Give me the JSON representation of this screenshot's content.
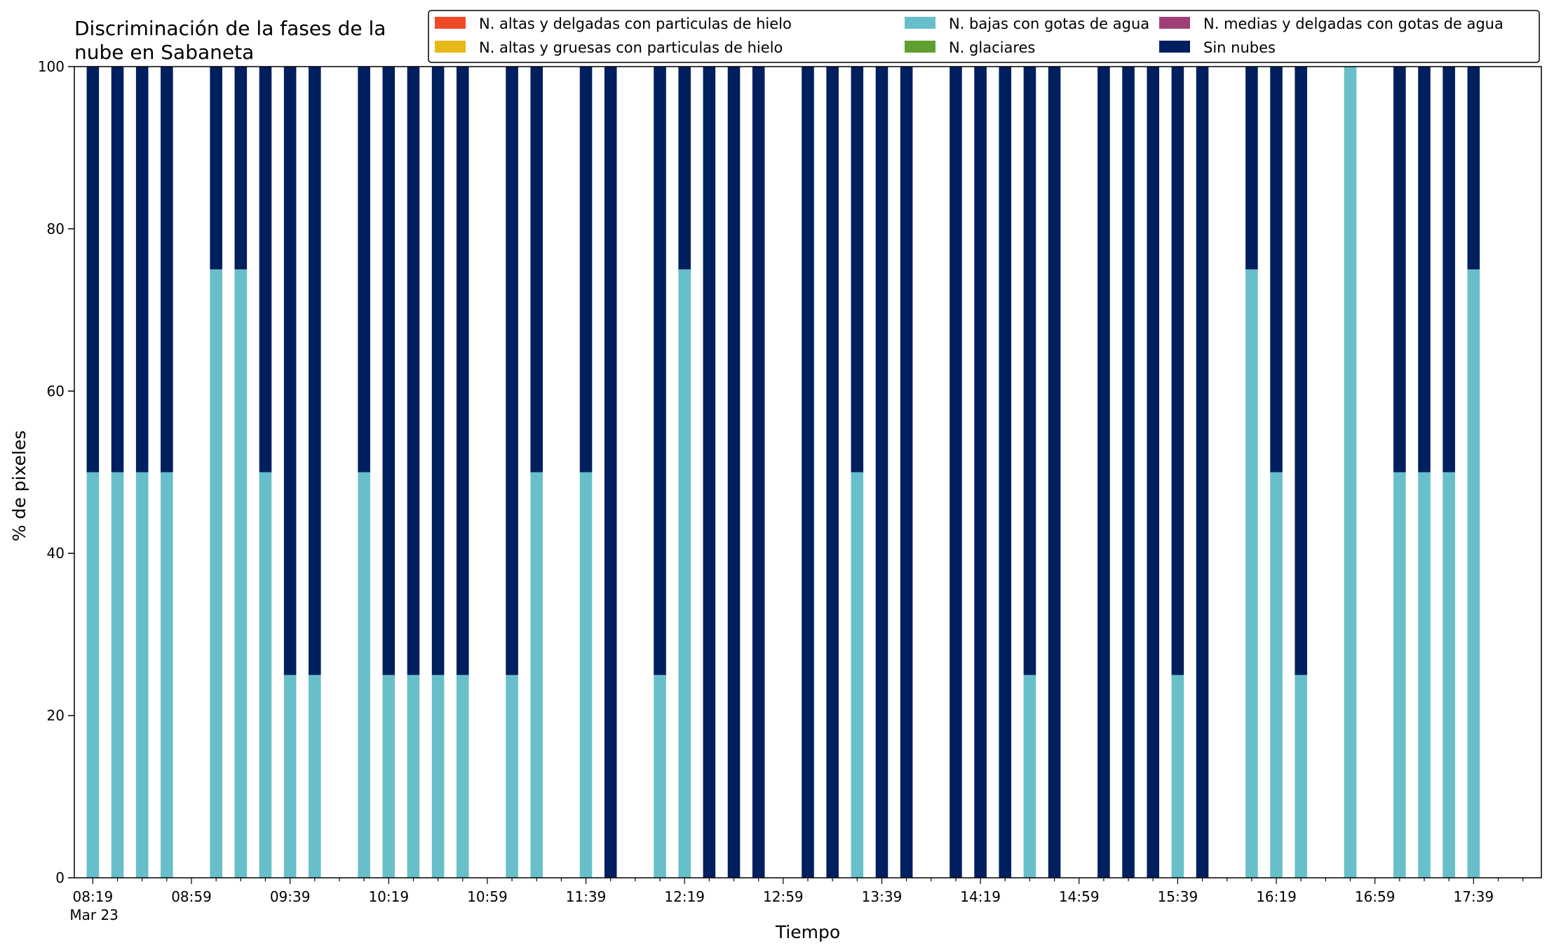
{
  "chart_data": {
    "type": "bar",
    "stacked": true,
    "title_lines": [
      "Discriminación de la fases de la",
      "nube en Sabaneta"
    ],
    "xlabel": "Tiempo",
    "ylabel": "% de pixeles",
    "ylim": [
      0,
      100
    ],
    "y_ticks": [
      "0",
      "20",
      "40",
      "60",
      "80",
      "100"
    ],
    "x_ticks": [
      "08:19",
      "08:59",
      "09:39",
      "10:19",
      "10:59",
      "11:39",
      "12:19",
      "12:59",
      "13:39",
      "14:19",
      "14:59",
      "15:39",
      "16:19",
      "16:59",
      "17:39"
    ],
    "x_tick_sublabel": "Mar 23",
    "grid": false,
    "legend_position": "top-right",
    "x_start": "08:19",
    "x_end": "17:59",
    "x_step_minutes": 10,
    "times": [
      "08:19",
      "08:29",
      "08:39",
      "08:49",
      "08:59",
      "09:09",
      "09:19",
      "09:29",
      "09:39",
      "09:49",
      "09:59",
      "10:09",
      "10:19",
      "10:29",
      "10:39",
      "10:49",
      "10:59",
      "11:09",
      "11:19",
      "11:29",
      "11:39",
      "11:49",
      "11:59",
      "12:09",
      "12:19",
      "12:29",
      "12:39",
      "12:49",
      "12:59",
      "13:09",
      "13:19",
      "13:29",
      "13:39",
      "13:49",
      "13:59",
      "14:09",
      "14:19",
      "14:29",
      "14:39",
      "14:49",
      "14:59",
      "15:09",
      "15:19",
      "15:29",
      "15:39",
      "15:49",
      "15:59",
      "16:09",
      "16:19",
      "16:29",
      "16:39",
      "16:49",
      "16:59",
      "17:09",
      "17:19",
      "17:29",
      "17:39"
    ],
    "series": [
      {
        "name": "N. altas y delgadas con particulas de hielo",
        "color": "#ef4a28",
        "values": [
          0,
          0,
          0,
          0,
          0,
          0,
          0,
          0,
          0,
          0,
          0,
          0,
          0,
          0,
          0,
          0,
          0,
          0,
          0,
          0,
          0,
          0,
          0,
          0,
          0,
          0,
          0,
          0,
          0,
          0,
          0,
          0,
          0,
          0,
          0,
          0,
          0,
          0,
          0,
          0,
          0,
          0,
          0,
          0,
          0,
          0,
          0,
          0,
          0,
          0,
          0,
          0,
          0,
          0,
          0,
          0,
          0
        ]
      },
      {
        "name": "N. altas y gruesas con particulas de hielo",
        "color": "#e6b919",
        "values": [
          0,
          0,
          0,
          0,
          0,
          0,
          0,
          0,
          0,
          0,
          0,
          0,
          0,
          0,
          0,
          0,
          0,
          0,
          0,
          0,
          0,
          0,
          0,
          0,
          0,
          0,
          0,
          0,
          0,
          0,
          0,
          0,
          0,
          0,
          0,
          0,
          0,
          0,
          0,
          0,
          0,
          0,
          0,
          0,
          0,
          0,
          0,
          0,
          0,
          0,
          0,
          0,
          0,
          0,
          0,
          0,
          0
        ]
      },
      {
        "name": "N. bajas con gotas de agua",
        "color": "#67bfca",
        "values": [
          50,
          50,
          50,
          50,
          0,
          75,
          75,
          50,
          25,
          25,
          0,
          50,
          25,
          25,
          25,
          25,
          0,
          25,
          50,
          0,
          50,
          0,
          0,
          25,
          75,
          0,
          0,
          0,
          0,
          0,
          0,
          50,
          0,
          0,
          0,
          0,
          0,
          0,
          25,
          0,
          0,
          0,
          0,
          0,
          25,
          0,
          0,
          75,
          50,
          25,
          0,
          100,
          0,
          50,
          50,
          50,
          75
        ]
      },
      {
        "name": "N. glaciares",
        "color": "#5f9f2f",
        "values": [
          0,
          0,
          0,
          0,
          0,
          0,
          0,
          0,
          0,
          0,
          0,
          0,
          0,
          0,
          0,
          0,
          0,
          0,
          0,
          0,
          0,
          0,
          0,
          0,
          0,
          0,
          0,
          0,
          0,
          0,
          0,
          0,
          0,
          0,
          0,
          0,
          0,
          0,
          0,
          0,
          0,
          0,
          0,
          0,
          0,
          0,
          0,
          0,
          0,
          0,
          0,
          0,
          0,
          0,
          0,
          0,
          0
        ]
      },
      {
        "name": "N. medias y delgadas con gotas de agua",
        "color": "#a03f76",
        "values": [
          0,
          0,
          0,
          0,
          0,
          0,
          0,
          0,
          0,
          0,
          0,
          0,
          0,
          0,
          0,
          0,
          0,
          0,
          0,
          0,
          0,
          0,
          0,
          0,
          0,
          0,
          0,
          0,
          0,
          0,
          0,
          0,
          0,
          0,
          0,
          0,
          0,
          0,
          0,
          0,
          0,
          0,
          0,
          0,
          0,
          0,
          0,
          0,
          0,
          0,
          0,
          0,
          0,
          0,
          0,
          0,
          0
        ]
      },
      {
        "name": "Sin nubes",
        "color": "#001f5f",
        "values": [
          50,
          50,
          50,
          50,
          0,
          25,
          25,
          50,
          75,
          75,
          0,
          50,
          75,
          75,
          75,
          75,
          0,
          75,
          50,
          0,
          50,
          100,
          0,
          75,
          25,
          100,
          100,
          100,
          0,
          100,
          100,
          50,
          100,
          100,
          0,
          100,
          100,
          100,
          75,
          100,
          0,
          100,
          100,
          100,
          75,
          100,
          0,
          25,
          50,
          75,
          0,
          0,
          0,
          50,
          50,
          50,
          25
        ]
      }
    ],
    "legend_columns": [
      [
        "N. altas y delgadas con particulas de hielo",
        "N. altas y gruesas con particulas de hielo"
      ],
      [
        "N. bajas con gotas de agua",
        "N. glaciares"
      ],
      [
        "N. medias y delgadas con gotas de agua",
        "Sin nubes"
      ]
    ]
  }
}
